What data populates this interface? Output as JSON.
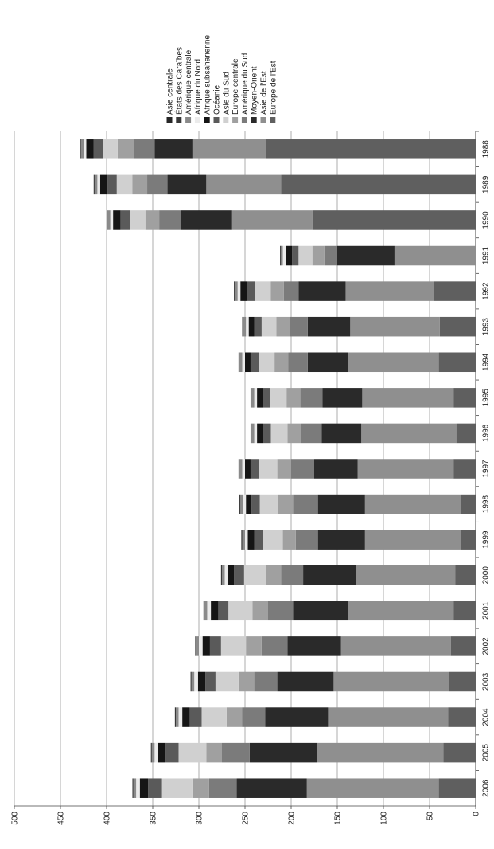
{
  "chart_data": {
    "type": "bar",
    "orientation": "horizontal",
    "stacked": true,
    "title": "",
    "xlabel": "",
    "ylabel": "",
    "xlim": [
      0,
      500
    ],
    "x_ticks": [
      0,
      50,
      100,
      150,
      200,
      250,
      300,
      350,
      400,
      450,
      500
    ],
    "grid": true,
    "legend_position": "top-right",
    "categories": [
      "1988",
      "1989",
      "1990",
      "1991",
      "1992",
      "1993",
      "1994",
      "1995",
      "1996",
      "1997",
      "1998",
      "1999",
      "2000",
      "2001",
      "2002",
      "2003",
      "2004",
      "2005",
      "2006"
    ],
    "series": [
      {
        "name": "Europe de l'Est",
        "color": "#5f5f5f",
        "values": [
          227,
          211,
          177,
          0,
          45,
          39,
          40,
          24,
          21,
          24,
          16,
          16,
          22,
          24,
          27,
          29,
          30,
          35,
          40
        ]
      },
      {
        "name": "Asie de l'Est",
        "color": "#8f8f8f",
        "values": [
          80,
          81,
          87,
          88,
          96,
          97,
          98,
          99,
          103,
          104,
          104,
          104,
          108,
          114,
          119,
          125,
          130,
          137,
          143
        ]
      },
      {
        "name": "Moyen-Orient",
        "color": "#2a2a2a",
        "values": [
          41,
          42,
          55,
          62,
          51,
          46,
          44,
          43,
          43,
          47,
          51,
          51,
          57,
          60,
          58,
          61,
          68,
          73,
          76
        ]
      },
      {
        "name": "Amérique du Sud",
        "color": "#7b7b7b",
        "values": [
          23,
          22,
          24,
          14,
          16,
          19,
          21,
          24,
          22,
          25,
          27,
          24,
          24,
          27,
          28,
          25,
          25,
          30,
          30
        ]
      },
      {
        "name": "Europe centrale",
        "color": "#a0a0a0",
        "values": [
          17,
          16,
          15,
          13,
          14,
          15,
          15,
          15,
          15,
          15,
          16,
          14,
          16,
          17,
          17,
          17,
          17,
          17,
          18
        ]
      },
      {
        "name": "Asie du Sud",
        "color": "#d0d0d0",
        "values": [
          16,
          17,
          17,
          15,
          17,
          16,
          17,
          18,
          18,
          20,
          20,
          22,
          24,
          26,
          27,
          25,
          27,
          30,
          33
        ]
      },
      {
        "name": "Océanie",
        "color": "#5a5a5a",
        "values": [
          10,
          10,
          10,
          7,
          9,
          8,
          9,
          8,
          9,
          9,
          9,
          9,
          11,
          11,
          12,
          11,
          13,
          14,
          15
        ]
      },
      {
        "name": "Afrique subsaharienne",
        "color": "#151515",
        "values": [
          8,
          8,
          8,
          7,
          7,
          6,
          6,
          6,
          6,
          6,
          6,
          7,
          7,
          8,
          8,
          8,
          8,
          8,
          9
        ]
      },
      {
        "name": "Afrique du Nord",
        "color": "#ebebeb",
        "values": [
          3,
          3,
          3,
          3,
          3,
          3,
          3,
          3,
          3,
          3,
          3,
          3,
          3,
          4,
          4,
          4,
          4,
          4,
          4
        ]
      },
      {
        "name": "Amérique centrale",
        "color": "#8a8a8a",
        "values": [
          3,
          3,
          3,
          2,
          3,
          3,
          3,
          3,
          3,
          3,
          3,
          3,
          3,
          3,
          3,
          3,
          3,
          3,
          3
        ]
      },
      {
        "name": "États des Caraïbes",
        "color": "#383838",
        "values": [
          1,
          1,
          1,
          1,
          1,
          1,
          1,
          1,
          1,
          1,
          1,
          1,
          1,
          1,
          1,
          1,
          1,
          1,
          1
        ]
      },
      {
        "name": "Asie centrale",
        "color": "#262626",
        "values": [
          0,
          0,
          0,
          0,
          0,
          0,
          0,
          0,
          0,
          0,
          0,
          0,
          0,
          0,
          0,
          0,
          0,
          0,
          0
        ]
      }
    ],
    "legend_order": [
      "Asie centrale",
      "États des Caraïbes",
      "Amérique centrale",
      "Afrique du Nord",
      "Afrique subsaharienne",
      "Océanie",
      "Asie du Sud",
      "Europe centrale",
      "Amérique du Sud",
      "Moyen-Orient",
      "Asie de l'Est",
      "Europe de l'Est"
    ]
  }
}
